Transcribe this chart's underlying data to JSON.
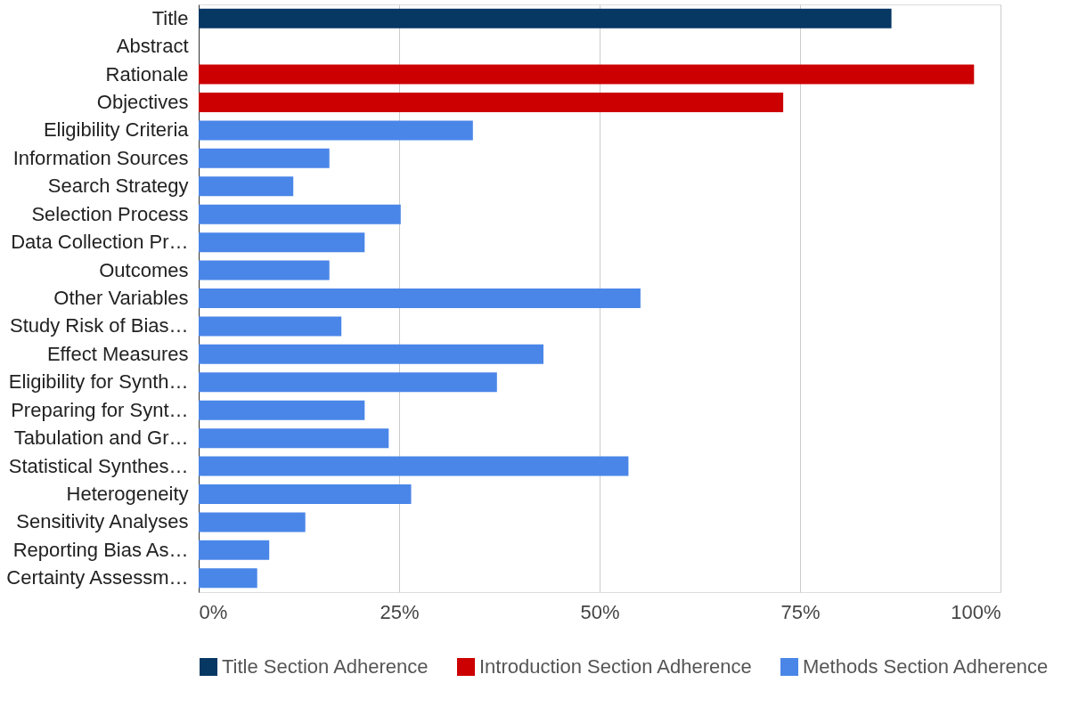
{
  "chart_data": {
    "type": "bar",
    "orientation": "horizontal",
    "categories": [
      "Title",
      "Abstract",
      "Rationale",
      "Objectives",
      "Eligibility Criteria",
      "Information Sources",
      "Search Strategy",
      "Selection Process",
      "Data Collection Pr…",
      "Outcomes",
      "Other Variables",
      "Study Risk of Bias…",
      "Effect Measures",
      "Eligibility for Synth…",
      "Preparing for Synt…",
      "Tabulation and Gr…",
      "Statistical Synthes…",
      "Heterogeneity",
      "Sensitivity Analyses",
      "Reporting Bias As…",
      "Certainty Assessm…"
    ],
    "series": [
      {
        "name": "Title Section Adherence",
        "color": "#073763",
        "values": [
          86.4,
          null,
          null,
          null,
          null,
          null,
          null,
          null,
          null,
          null,
          null,
          null,
          null,
          null,
          null,
          null,
          null,
          null,
          null,
          null,
          null
        ]
      },
      {
        "name": "Introduction Section Adherence",
        "color": "#cc0000",
        "values": [
          null,
          null,
          96.7,
          72.9,
          null,
          null,
          null,
          null,
          null,
          null,
          null,
          null,
          null,
          null,
          null,
          null,
          null,
          null,
          null,
          null,
          null
        ]
      },
      {
        "name": "Methods Section Adherence",
        "color": "#4a86e8",
        "values": [
          null,
          null,
          null,
          null,
          34.2,
          16.3,
          11.8,
          25.2,
          20.7,
          16.3,
          55.1,
          17.8,
          43.0,
          37.2,
          20.7,
          23.7,
          53.6,
          26.5,
          13.3,
          8.8,
          7.3
        ]
      }
    ],
    "xlim": [
      0,
      100
    ],
    "xticks": [
      {
        "value": 0,
        "label": "0%"
      },
      {
        "value": 25,
        "label": "25%"
      },
      {
        "value": 50,
        "label": "50%"
      },
      {
        "value": 75,
        "label": "75%"
      },
      {
        "value": 100,
        "label": "100%"
      }
    ],
    "grid": "x",
    "legend": "bottom"
  }
}
